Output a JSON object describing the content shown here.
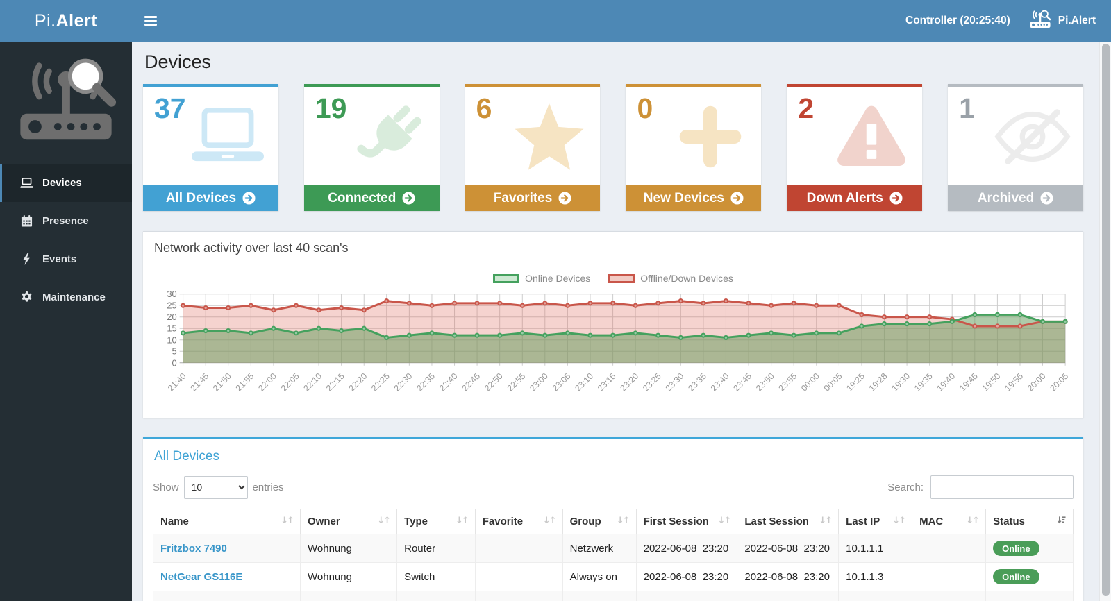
{
  "header": {
    "brand_prefix": "Pi.",
    "brand_suffix": "Alert",
    "controller_label": "Controller (20:25:40)",
    "app_name": "Pi.Alert"
  },
  "sidebar": {
    "items": [
      {
        "label": "Devices"
      },
      {
        "label": "Presence"
      },
      {
        "label": "Events"
      },
      {
        "label": "Maintenance"
      }
    ]
  },
  "page": {
    "title": "Devices"
  },
  "stat_cards": [
    {
      "value": "37",
      "label": "All Devices",
      "color": "#42a1d3",
      "icon_color": "#cde8f6"
    },
    {
      "value": "19",
      "label": "Connected",
      "color": "#3d9a55",
      "icon_color": "#d9ecdc"
    },
    {
      "value": "6",
      "label": "Favorites",
      "color": "#cd9136",
      "icon_color": "#f6e4c3"
    },
    {
      "value": "0",
      "label": "New Devices",
      "color": "#cd9136",
      "icon_color": "#f6e4c3"
    },
    {
      "value": "2",
      "label": "Down Alerts",
      "color": "#c04532",
      "icon_color": "#f1d3cc"
    },
    {
      "value": "1",
      "label": "Archived",
      "color": "#b5bbc1",
      "value_color": "#9aa1a8",
      "icon_color": "#ececec"
    }
  ],
  "chart_panel": {
    "title": "Network activity over last 40 scan's"
  },
  "chart_data": {
    "type": "line",
    "title": "Network activity over last 40 scan's",
    "xlabel": "",
    "ylabel": "",
    "ylim": [
      0,
      30
    ],
    "ytick_step": 5,
    "grid": true,
    "legend_position": "top-center",
    "categories": [
      "21:40",
      "21:45",
      "21:50",
      "21:55",
      "22:00",
      "22:05",
      "22:10",
      "22:15",
      "22:20",
      "22:25",
      "22:30",
      "22:35",
      "22:40",
      "22:45",
      "22:50",
      "22:55",
      "23:00",
      "23:05",
      "23:10",
      "23:15",
      "23:20",
      "23:25",
      "23:30",
      "23:35",
      "23:40",
      "23:45",
      "23:50",
      "23:55",
      "00:00",
      "00:05",
      "19:25",
      "19:28",
      "19:30",
      "19:35",
      "19:40",
      "19:45",
      "19:50",
      "19:55",
      "20:00",
      "20:05"
    ],
    "series": [
      {
        "name": "Online Devices",
        "color": "#45a15e",
        "fill": "rgba(110,160,100,0.55)",
        "legend_fill": "#cde9d2",
        "values": [
          13,
          14,
          14,
          13,
          15,
          13,
          15,
          14,
          15,
          11,
          12,
          13,
          12,
          12,
          12,
          13,
          12,
          13,
          12,
          12,
          13,
          12,
          11,
          12,
          11,
          12,
          13,
          12,
          13,
          13,
          16,
          17,
          17,
          17,
          18,
          21,
          21,
          21,
          18,
          18
        ]
      },
      {
        "name": "Offline/Down Devices",
        "color": "#c9564a",
        "fill": "rgba(222,108,96,0.30)",
        "legend_fill": "#f2cbc4",
        "values": [
          25,
          24,
          24,
          25,
          23,
          25,
          23,
          24,
          23,
          27,
          26,
          25,
          26,
          26,
          26,
          25,
          26,
          25,
          26,
          26,
          25,
          26,
          27,
          26,
          27,
          26,
          25,
          26,
          25,
          25,
          21,
          20,
          20,
          20,
          19,
          16,
          16,
          16,
          18,
          18
        ]
      }
    ]
  },
  "devices_panel": {
    "title": "All Devices",
    "show_label": "Show",
    "entries_label": "entries",
    "page_length": "10",
    "search_label": "Search:",
    "status_colors": {
      "online": "#4a9d58"
    },
    "columns": [
      "Name",
      "Owner",
      "Type",
      "Favorite",
      "Group",
      "First Session",
      "Last Session",
      "Last IP",
      "MAC",
      "Status"
    ],
    "rows": [
      {
        "name": "Fritzbox 7490",
        "owner": "Wohnung",
        "type": "Router",
        "favorite": "",
        "group": "Netzwerk",
        "first_session": "2022-06-08  23:20",
        "last_session": "2022-06-08  23:20",
        "last_ip": "10.1.1.1",
        "mac": "",
        "status": "Online"
      },
      {
        "name": "NetGear GS116E",
        "owner": "Wohnung",
        "type": "Switch",
        "favorite": "",
        "group": "Always on",
        "first_session": "2022-06-08  23:20",
        "last_session": "2022-06-08  23:20",
        "last_ip": "10.1.1.3",
        "mac": "",
        "status": "Online"
      }
    ]
  }
}
